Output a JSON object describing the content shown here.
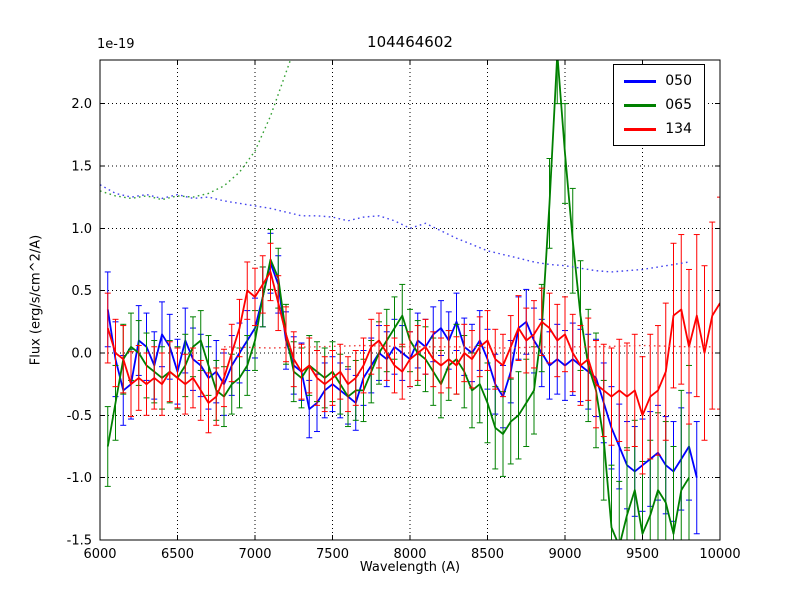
{
  "figure": {
    "title": "104464602",
    "offset_text": "1e-19",
    "xlabel": "Wavelength (A)",
    "ylabel": "Flux (erg/s/cm^2/A)"
  },
  "legend": {
    "position": "upper right",
    "entries": [
      {
        "label": "050",
        "color": "#0000ff"
      },
      {
        "label": "065",
        "color": "#008000"
      },
      {
        "label": "134",
        "color": "#ff0000"
      }
    ]
  },
  "chart_data": {
    "type": "line",
    "title": "104464602",
    "xlabel": "Wavelength (A)",
    "ylabel": "Flux (erg/s/cm^2/A)",
    "offset_text": "1e-19",
    "xlim": [
      6000,
      10000
    ],
    "ylim": [
      -1.5,
      2.35
    ],
    "xticks": [
      6000,
      6500,
      7000,
      7500,
      8000,
      8500,
      9000,
      9500,
      10000
    ],
    "xtick_labels": [
      "6000",
      "6500",
      "7000",
      "7500",
      "8000",
      "8500",
      "9000",
      "9500",
      "10000"
    ],
    "yticks": [
      -1.5,
      -1.0,
      -0.5,
      0.0,
      0.5,
      1.0,
      1.5,
      2.0
    ],
    "ytick_labels": [
      "-1.5",
      "-1.0",
      "-0.5",
      "0.0",
      "0.5",
      "1.0",
      "1.5",
      "2.0"
    ],
    "grid": true,
    "grid_style": "dotted",
    "series": [
      {
        "name": "050",
        "color": "#0000ff",
        "style": "solid",
        "in_legend": true,
        "x": [
          6050,
          6100,
          6150,
          6200,
          6250,
          6300,
          6350,
          6400,
          6450,
          6500,
          6550,
          6600,
          6650,
          6700,
          6750,
          6800,
          6850,
          6900,
          6950,
          7000,
          7050,
          7100,
          7150,
          7200,
          7250,
          7300,
          7350,
          7400,
          7450,
          7500,
          7550,
          7600,
          7650,
          7700,
          7750,
          7800,
          7850,
          7900,
          7950,
          8000,
          8050,
          8100,
          8150,
          8200,
          8250,
          8300,
          8350,
          8400,
          8450,
          8500,
          8550,
          8600,
          8650,
          8700,
          8750,
          8800,
          8850,
          8900,
          8950,
          9000,
          9050,
          9100,
          9150,
          9200,
          9250,
          9300,
          9350,
          9400,
          9450,
          9500,
          9550,
          9600,
          9650,
          9700,
          9750,
          9800,
          9850
        ],
        "y": [
          0.35,
          -0.05,
          -0.3,
          -0.25,
          0.1,
          0.05,
          -0.1,
          0.15,
          0.05,
          -0.15,
          0.1,
          -0.05,
          -0.1,
          -0.2,
          -0.15,
          -0.25,
          -0.1,
          0.0,
          0.1,
          0.2,
          0.45,
          0.72,
          0.55,
          0.1,
          -0.1,
          -0.15,
          -0.45,
          -0.4,
          -0.3,
          -0.25,
          -0.3,
          -0.35,
          -0.4,
          -0.2,
          -0.1,
          0.0,
          -0.05,
          0.05,
          0.0,
          -0.05,
          0.1,
          0.05,
          0.15,
          0.2,
          0.1,
          0.25,
          0.05,
          0.0,
          0.1,
          -0.05,
          -0.25,
          -0.35,
          -0.15,
          0.2,
          0.25,
          0.1,
          0.0,
          -0.1,
          -0.05,
          -0.1,
          -0.05,
          -0.1,
          -0.15,
          -0.2,
          -0.4,
          -0.6,
          -0.75,
          -0.9,
          -0.95,
          -0.9,
          -0.85,
          -0.8,
          -0.9,
          -0.95,
          -0.85,
          -0.75,
          -1.0
        ],
        "yerr": [
          0.3,
          0.3,
          0.28,
          0.28,
          0.28,
          0.27,
          0.27,
          0.26,
          0.26,
          0.26,
          0.26,
          0.25,
          0.25,
          0.25,
          0.25,
          0.25,
          0.24,
          0.24,
          0.24,
          0.24,
          0.24,
          0.24,
          0.23,
          0.23,
          0.23,
          0.23,
          0.23,
          0.23,
          0.22,
          0.22,
          0.22,
          0.22,
          0.22,
          0.22,
          0.22,
          0.22,
          0.22,
          0.22,
          0.22,
          0.22,
          0.22,
          0.22,
          0.22,
          0.22,
          0.23,
          0.23,
          0.23,
          0.23,
          0.24,
          0.24,
          0.24,
          0.25,
          0.25,
          0.25,
          0.26,
          0.26,
          0.27,
          0.27,
          0.28,
          0.28,
          0.29,
          0.29,
          0.3,
          0.31,
          0.32,
          0.33,
          0.34,
          0.35,
          0.36,
          0.37,
          0.38,
          0.38,
          0.39,
          0.4,
          0.41,
          0.43,
          0.45
        ]
      },
      {
        "name": "065",
        "color": "#008000",
        "style": "solid",
        "in_legend": true,
        "x": [
          6050,
          6100,
          6150,
          6200,
          6250,
          6300,
          6350,
          6400,
          6450,
          6500,
          6550,
          6600,
          6650,
          6700,
          6750,
          6800,
          6850,
          6900,
          6950,
          7000,
          7050,
          7100,
          7150,
          7200,
          7250,
          7300,
          7350,
          7400,
          7450,
          7500,
          7550,
          7600,
          7650,
          7700,
          7750,
          7800,
          7850,
          7900,
          7950,
          8000,
          8050,
          8100,
          8150,
          8200,
          8250,
          8300,
          8350,
          8400,
          8450,
          8500,
          8550,
          8600,
          8650,
          8700,
          8750,
          8800,
          8850,
          8900,
          8950,
          9000,
          9050,
          9100,
          9150,
          9200,
          9250,
          9300,
          9350,
          9400,
          9450,
          9500,
          9550,
          9600,
          9650,
          9700,
          9750,
          9800
        ],
        "y": [
          -0.75,
          -0.4,
          -0.05,
          0.05,
          0.0,
          -0.1,
          -0.15,
          -0.2,
          -0.15,
          -0.2,
          -0.1,
          0.05,
          0.1,
          -0.1,
          -0.3,
          -0.35,
          -0.25,
          -0.2,
          -0.1,
          0.1,
          0.45,
          0.75,
          0.6,
          0.15,
          -0.15,
          -0.2,
          -0.1,
          -0.15,
          -0.2,
          -0.15,
          -0.25,
          -0.35,
          -0.3,
          -0.3,
          -0.15,
          0.0,
          0.1,
          0.2,
          0.3,
          0.1,
          0.0,
          -0.05,
          -0.15,
          -0.25,
          -0.1,
          -0.05,
          -0.15,
          -0.3,
          -0.25,
          -0.4,
          -0.6,
          -0.65,
          -0.55,
          -0.5,
          -0.4,
          -0.3,
          0.2,
          1.2,
          2.4,
          1.6,
          0.9,
          0.3,
          -0.1,
          -0.3,
          -0.7,
          -1.4,
          -1.55,
          -1.3,
          -1.1,
          -1.45,
          -1.3,
          -1.1,
          -1.2,
          -1.45,
          -1.1,
          -1.0
        ],
        "yerr": [
          0.32,
          0.3,
          0.28,
          0.27,
          0.26,
          0.26,
          0.25,
          0.25,
          0.25,
          0.25,
          0.25,
          0.24,
          0.24,
          0.24,
          0.24,
          0.24,
          0.24,
          0.24,
          0.24,
          0.24,
          0.24,
          0.24,
          0.24,
          0.24,
          0.24,
          0.24,
          0.24,
          0.24,
          0.24,
          0.24,
          0.24,
          0.24,
          0.24,
          0.25,
          0.25,
          0.25,
          0.25,
          0.25,
          0.25,
          0.25,
          0.26,
          0.26,
          0.27,
          0.27,
          0.28,
          0.28,
          0.29,
          0.3,
          0.31,
          0.32,
          0.33,
          0.34,
          0.34,
          0.35,
          0.35,
          0.35,
          0.35,
          0.36,
          0.4,
          0.4,
          0.42,
          0.44,
          0.45,
          0.46,
          0.48,
          0.5,
          0.52,
          0.54,
          0.56,
          0.58,
          0.6,
          0.62,
          0.65,
          0.7,
          0.8,
          0.9
        ]
      },
      {
        "name": "134",
        "color": "#ff0000",
        "style": "solid",
        "in_legend": true,
        "x": [
          6050,
          6100,
          6150,
          6200,
          6250,
          6300,
          6350,
          6400,
          6450,
          6500,
          6550,
          6600,
          6650,
          6700,
          6750,
          6800,
          6850,
          6900,
          6950,
          7000,
          7050,
          7100,
          7150,
          7200,
          7250,
          7300,
          7350,
          7400,
          7450,
          7500,
          7550,
          7600,
          7650,
          7700,
          7750,
          7800,
          7850,
          7900,
          7950,
          8000,
          8050,
          8100,
          8150,
          8200,
          8250,
          8300,
          8350,
          8400,
          8450,
          8500,
          8550,
          8600,
          8650,
          8700,
          8750,
          8800,
          8850,
          8900,
          8950,
          9000,
          9050,
          9100,
          9150,
          9200,
          9250,
          9300,
          9350,
          9400,
          9450,
          9500,
          9550,
          9600,
          9650,
          9700,
          9750,
          9800,
          9850,
          9900,
          9950,
          10000
        ],
        "y": [
          0.2,
          0.0,
          -0.05,
          -0.25,
          -0.2,
          -0.25,
          -0.2,
          -0.25,
          -0.15,
          -0.2,
          -0.25,
          -0.2,
          -0.3,
          -0.4,
          -0.35,
          -0.2,
          0.0,
          0.2,
          0.5,
          0.45,
          0.55,
          0.65,
          0.4,
          0.15,
          -0.05,
          -0.15,
          -0.1,
          -0.2,
          -0.25,
          -0.2,
          -0.15,
          -0.25,
          -0.2,
          -0.1,
          0.05,
          0.1,
          0.0,
          -0.1,
          -0.15,
          -0.05,
          0.0,
          0.05,
          -0.05,
          -0.1,
          -0.05,
          -0.1,
          0.0,
          -0.05,
          0.05,
          0.1,
          -0.05,
          -0.1,
          0.05,
          0.2,
          0.1,
          0.15,
          0.25,
          0.2,
          0.1,
          0.15,
          0.0,
          -0.1,
          -0.05,
          -0.25,
          -0.3,
          -0.35,
          -0.3,
          -0.35,
          -0.3,
          -0.5,
          -0.35,
          -0.3,
          -0.15,
          0.3,
          0.35,
          0.05,
          0.3,
          0.0,
          0.3,
          0.4
        ],
        "yerr": [
          0.28,
          0.27,
          0.27,
          0.26,
          0.26,
          0.25,
          0.25,
          0.25,
          0.24,
          0.24,
          0.24,
          0.24,
          0.24,
          0.24,
          0.23,
          0.23,
          0.23,
          0.23,
          0.23,
          0.23,
          0.23,
          0.23,
          0.22,
          0.22,
          0.22,
          0.22,
          0.22,
          0.22,
          0.22,
          0.22,
          0.22,
          0.22,
          0.22,
          0.22,
          0.22,
          0.22,
          0.22,
          0.22,
          0.22,
          0.22,
          0.22,
          0.22,
          0.22,
          0.22,
          0.23,
          0.23,
          0.23,
          0.23,
          0.24,
          0.24,
          0.24,
          0.25,
          0.25,
          0.26,
          0.26,
          0.27,
          0.27,
          0.28,
          0.29,
          0.3,
          0.31,
          0.32,
          0.33,
          0.35,
          0.37,
          0.39,
          0.41,
          0.43,
          0.45,
          0.47,
          0.5,
          0.52,
          0.55,
          0.58,
          0.6,
          0.62,
          0.65,
          0.7,
          0.75,
          0.85
        ]
      },
      {
        "name": "050-continuum",
        "color": "#4444ee",
        "style": "dotted",
        "in_legend": false,
        "x": [
          6000,
          6100,
          6200,
          6300,
          6400,
          6500,
          6600,
          6700,
          6800,
          6900,
          7000,
          7100,
          7200,
          7300,
          7400,
          7500,
          7600,
          7700,
          7800,
          7900,
          8000,
          8100,
          8200,
          8300,
          8400,
          8500,
          8600,
          8700,
          8800,
          8900,
          9000,
          9100,
          9200,
          9300,
          9400,
          9500,
          9600,
          9700,
          9800
        ],
        "y": [
          1.35,
          1.28,
          1.25,
          1.27,
          1.24,
          1.27,
          1.24,
          1.25,
          1.22,
          1.2,
          1.18,
          1.16,
          1.13,
          1.1,
          1.1,
          1.09,
          1.06,
          1.09,
          1.1,
          1.06,
          1.0,
          1.04,
          0.98,
          0.92,
          0.87,
          0.82,
          0.79,
          0.76,
          0.73,
          0.71,
          0.7,
          0.68,
          0.66,
          0.65,
          0.66,
          0.67,
          0.69,
          0.71,
          0.73
        ]
      },
      {
        "name": "065-continuum",
        "color": "#33a033",
        "style": "dotted",
        "in_legend": false,
        "x": [
          6000,
          6100,
          6200,
          6300,
          6400,
          6500,
          6600,
          6700,
          6800,
          6900,
          7000,
          7100,
          7200,
          7300
        ],
        "y": [
          1.3,
          1.26,
          1.24,
          1.26,
          1.23,
          1.26,
          1.25,
          1.28,
          1.34,
          1.45,
          1.62,
          1.9,
          2.25,
          2.6
        ]
      },
      {
        "name": "134-continuum",
        "color": "#ee4444",
        "style": "dotted",
        "in_legend": false,
        "x": [
          6800,
          7100,
          7400,
          7700,
          8000,
          8300,
          8600,
          8900,
          9200,
          9500,
          9800,
          9950
        ],
        "y": [
          0.05,
          0.04,
          0.05,
          0.06,
          0.05,
          0.05,
          0.04,
          0.05,
          0.05,
          0.06,
          0.05,
          0.05
        ]
      }
    ]
  }
}
